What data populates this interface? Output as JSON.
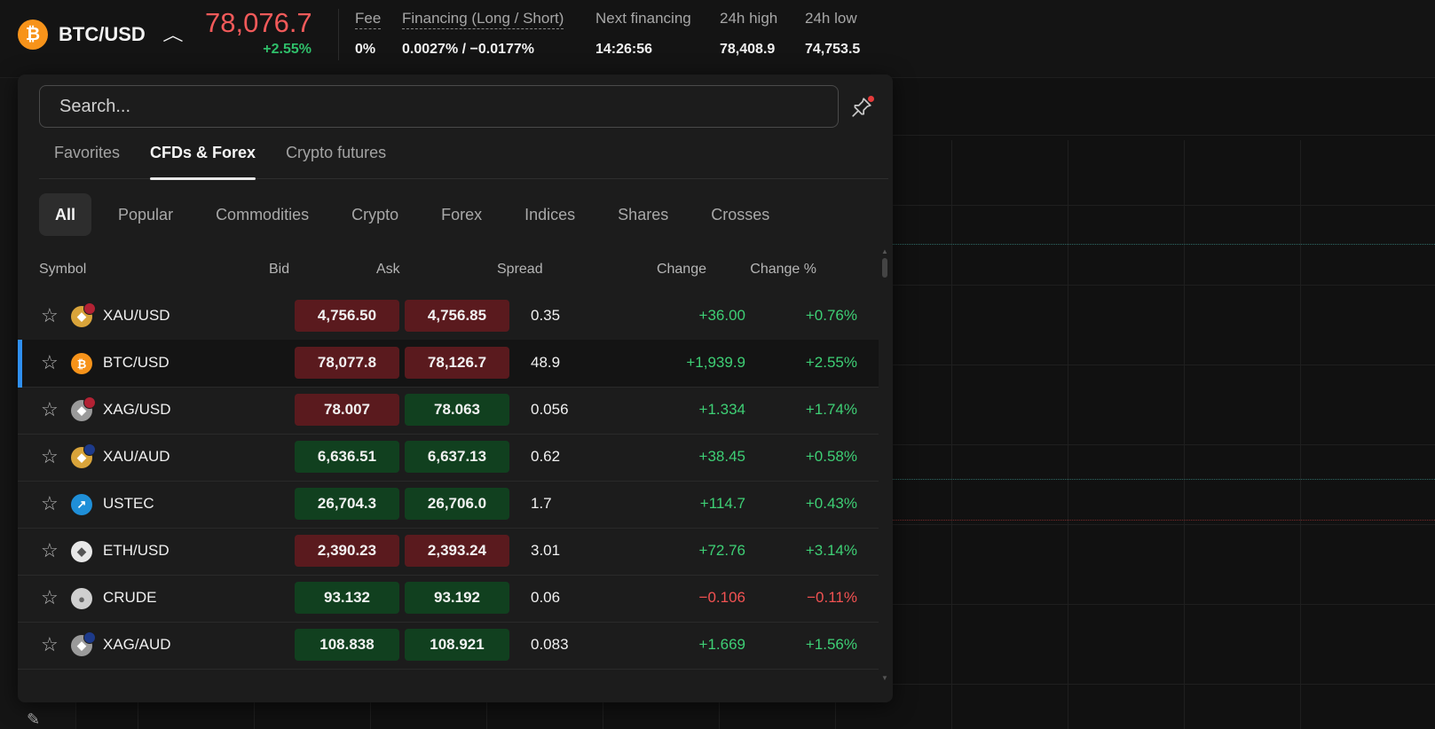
{
  "header": {
    "symbol": "BTC/USD",
    "price": "78,076.7",
    "change_pct": "+2.55%",
    "stats": [
      {
        "label": "Fee",
        "value": "0%"
      },
      {
        "label": "Financing (Long / Short)",
        "value": "0.0027% / −0.0177%"
      },
      {
        "label": "Next financing",
        "value": "14:26:56"
      },
      {
        "label": "24h high",
        "value": "78,408.9"
      },
      {
        "label": "24h low",
        "value": "74,753.5"
      }
    ]
  },
  "search": {
    "placeholder": "Search..."
  },
  "tabs": [
    {
      "label": "Favorites",
      "active": false
    },
    {
      "label": "CFDs & Forex",
      "active": true
    },
    {
      "label": "Crypto futures",
      "active": false
    }
  ],
  "categories": [
    {
      "label": "All",
      "active": true
    },
    {
      "label": "Popular"
    },
    {
      "label": "Commodities"
    },
    {
      "label": "Crypto"
    },
    {
      "label": "Forex"
    },
    {
      "label": "Indices"
    },
    {
      "label": "Shares"
    },
    {
      "label": "Crosses"
    }
  ],
  "table": {
    "headers": {
      "symbol": "Symbol",
      "bid": "Bid",
      "ask": "Ask",
      "spread": "Spread",
      "change": "Change",
      "change_pct": "Change %"
    },
    "rows": [
      {
        "symbol": "XAU/USD",
        "icon": "gold-icon",
        "bid": "4,756.50",
        "ask": "4,756.85",
        "bid_tone": "red",
        "ask_tone": "red",
        "spread": "0.35",
        "change": "+36.00",
        "change_pct": "+0.76%",
        "dir": "pos"
      },
      {
        "symbol": "BTC/USD",
        "icon": "bitcoin-icon",
        "bid": "78,077.8",
        "ask": "78,126.7",
        "bid_tone": "red",
        "ask_tone": "red",
        "spread": "48.9",
        "change": "+1,939.9",
        "change_pct": "+2.55%",
        "dir": "pos",
        "selected": true
      },
      {
        "symbol": "XAG/USD",
        "icon": "silver-icon",
        "bid": "78.007",
        "ask": "78.063",
        "bid_tone": "red",
        "ask_tone": "green",
        "spread": "0.056",
        "change": "+1.334",
        "change_pct": "+1.74%",
        "dir": "pos"
      },
      {
        "symbol": "XAU/AUD",
        "icon": "gold-icon",
        "bid": "6,636.51",
        "ask": "6,637.13",
        "bid_tone": "green",
        "ask_tone": "green",
        "spread": "0.62",
        "change": "+38.45",
        "change_pct": "+0.58%",
        "dir": "pos"
      },
      {
        "symbol": "USTEC",
        "icon": "index-icon",
        "bid": "26,704.3",
        "ask": "26,706.0",
        "bid_tone": "green",
        "ask_tone": "green",
        "spread": "1.7",
        "change": "+114.7",
        "change_pct": "+0.43%",
        "dir": "pos"
      },
      {
        "symbol": "ETH/USD",
        "icon": "ethereum-icon",
        "bid": "2,390.23",
        "ask": "2,393.24",
        "bid_tone": "red",
        "ask_tone": "red",
        "spread": "3.01",
        "change": "+72.76",
        "change_pct": "+3.14%",
        "dir": "pos"
      },
      {
        "symbol": "CRUDE",
        "icon": "oil-drop-icon",
        "bid": "93.132",
        "ask": "93.192",
        "bid_tone": "green",
        "ask_tone": "green",
        "spread": "0.06",
        "change": "−0.106",
        "change_pct": "−0.11%",
        "dir": "neg"
      },
      {
        "symbol": "XAG/AUD",
        "icon": "silver-icon",
        "bid": "108.838",
        "ask": "108.921",
        "bid_tone": "green",
        "ask_tone": "green",
        "spread": "0.083",
        "change": "+1.669",
        "change_pct": "+1.56%",
        "dir": "pos"
      }
    ]
  },
  "colors": {
    "price_down": "#f25a5a",
    "positive": "#3ecf75",
    "negative": "#f25252",
    "accent": "#2f8ff0",
    "bitcoin": "#f7931a"
  }
}
